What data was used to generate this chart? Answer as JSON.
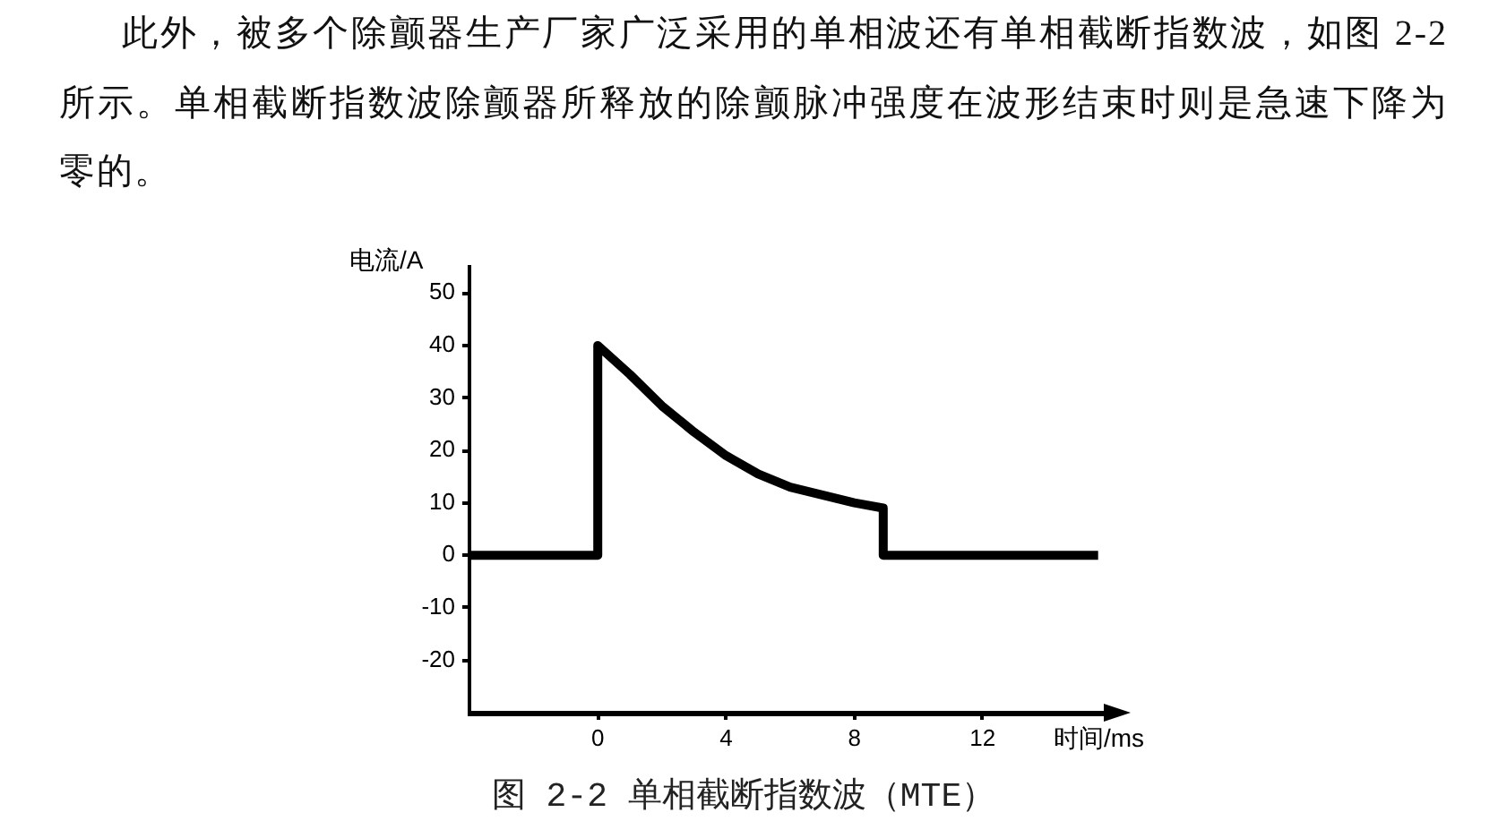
{
  "chart_data": {
    "type": "line",
    "annotations": [
      "此外，被多个除颤器生产厂家广泛采用的单相波还有单相截断指数波，如图 2-2所示。单相截断指数波除颤器所释放的除颤脉冲强度在波形结束时则是急速下降为零的。",
      "图 2-2 单相截断指数波（MTE）"
    ],
    "ylabel": "电流/A",
    "xlabel": "时间/ms",
    "x": [
      -4,
      0,
      0,
      1,
      2,
      3,
      4,
      5,
      6,
      7,
      8,
      8.9,
      8.9,
      15.6
    ],
    "values": [
      0,
      0,
      40,
      34.5,
      28.5,
      23.5,
      19,
      15.5,
      13,
      11.5,
      10,
      9,
      0,
      0
    ],
    "color": "#000000",
    "xlim": [
      -4,
      16
    ],
    "ylim": [
      -30,
      55
    ],
    "xticks": [
      0,
      4,
      8,
      12
    ],
    "yticks": [
      -20,
      -10,
      0,
      10,
      20,
      30,
      40,
      50
    ]
  }
}
